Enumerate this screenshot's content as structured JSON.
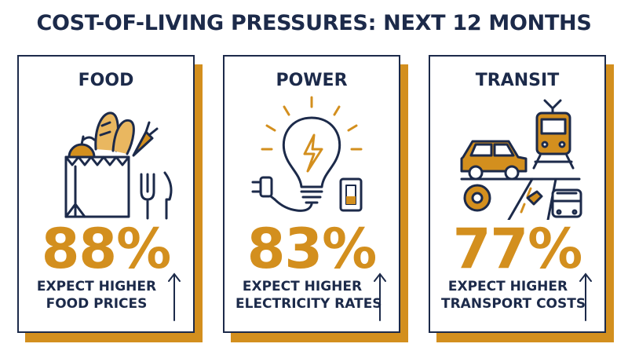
{
  "title": "COST-OF-LIVING PRESSURES: NEXT 12 MONTHS",
  "colors": {
    "navy": "#1c2a4a",
    "accent": "#d38f1e"
  },
  "cards": [
    {
      "label": "FOOD",
      "percent": "88%",
      "line1": "EXPECT HIGHER",
      "line2": "FOOD PRICES",
      "icon": "grocery-bag-icon"
    },
    {
      "label": "POWER",
      "percent": "83%",
      "line1": "EXPECT HIGHER",
      "line2": "ELECTRICITY RATES",
      "icon": "light-bulb-icon"
    },
    {
      "label": "TRANSIT",
      "percent": "77%",
      "line1": "EXPECT HIGHER",
      "line2": "TRANSPORT COSTS",
      "icon": "transport-icon"
    }
  ]
}
